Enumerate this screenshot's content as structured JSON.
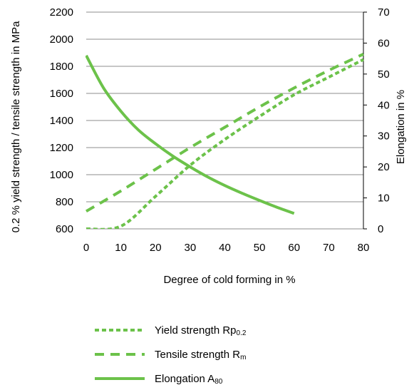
{
  "chart_data": {
    "type": "line",
    "title": "",
    "xlabel": "Degree of cold forming in %",
    "ylabel_left": "0.2 % yield strength / tensile strength in MPa",
    "ylabel_right": "Elongation in %",
    "xlim": [
      0,
      80
    ],
    "ylim_left": [
      600,
      2200
    ],
    "ylim_right": [
      0,
      70
    ],
    "x_ticks": [
      "0",
      "10",
      "20",
      "30",
      "40",
      "50",
      "60",
      "70",
      "80"
    ],
    "y_left_ticks": [
      "600",
      "800",
      "1000",
      "1200",
      "1400",
      "1600",
      "1800",
      "2000",
      "2200"
    ],
    "y_right_ticks": [
      "0",
      "10",
      "20",
      "30",
      "40",
      "50",
      "60",
      "70"
    ],
    "grid": "horizontal",
    "legend_position": "bottom",
    "series": [
      {
        "name": "Yield strength Rp",
        "name_sub": "0.2",
        "axis": "left",
        "style": "dotted",
        "x": [
          0,
          10,
          20,
          30,
          40,
          50,
          60,
          70,
          80
        ],
        "y": [
          600,
          620,
          840,
          1070,
          1260,
          1430,
          1590,
          1720,
          1850
        ]
      },
      {
        "name": "Tensile strength R",
        "name_sub": "m",
        "axis": "left",
        "style": "dashed",
        "x": [
          0,
          10,
          20,
          30,
          40,
          50,
          60,
          70,
          80
        ],
        "y": [
          730,
          880,
          1040,
          1200,
          1350,
          1500,
          1640,
          1770,
          1890
        ]
      },
      {
        "name": "Elongation A",
        "name_sub": "80",
        "axis": "right",
        "style": "solid",
        "x": [
          0,
          5,
          10,
          15,
          20,
          25,
          30,
          35,
          40,
          45,
          50,
          55,
          60
        ],
        "y": [
          56,
          45.5,
          38,
          32,
          27.5,
          23.5,
          20,
          16.8,
          14,
          11.5,
          9.2,
          7,
          5
        ]
      }
    ],
    "colors": {
      "series": "#6CC24A",
      "grid": "#8C8C8C",
      "axis": "#000000"
    }
  }
}
